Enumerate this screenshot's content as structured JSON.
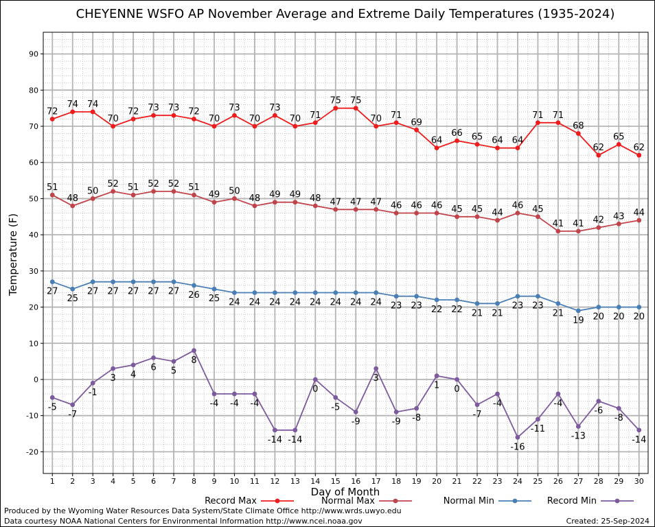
{
  "chart_data": {
    "type": "line",
    "title": "CHEYENNE WSFO AP November Average and Extreme Daily Temperatures (1935-2024)",
    "xlabel": "Day of Month",
    "ylabel": "Temperature (F)",
    "x": [
      1,
      2,
      3,
      4,
      5,
      6,
      7,
      8,
      9,
      10,
      11,
      12,
      13,
      14,
      15,
      16,
      17,
      18,
      19,
      20,
      21,
      22,
      23,
      24,
      25,
      26,
      27,
      28,
      29,
      30
    ],
    "xlim": [
      0.55,
      30.45
    ],
    "ylim": [
      -26,
      96
    ],
    "yticks": [
      -20,
      -10,
      0,
      10,
      20,
      30,
      40,
      50,
      60,
      70,
      80,
      90
    ],
    "grid": true,
    "legend_position": "bottom",
    "series": [
      {
        "name": "Record Max",
        "color": "#ee1c1c",
        "values": [
          72,
          74,
          74,
          70,
          72,
          73,
          73,
          72,
          70,
          73,
          70,
          73,
          70,
          71,
          75,
          75,
          70,
          71,
          69,
          64,
          66,
          65,
          64,
          64,
          71,
          71,
          68,
          62,
          65,
          62
        ],
        "label_pos": "above"
      },
      {
        "name": "Normal Max",
        "color": "#c0444a",
        "values": [
          51,
          48,
          50,
          52,
          51,
          52,
          52,
          51,
          49,
          50,
          48,
          49,
          49,
          48,
          47,
          47,
          47,
          46,
          46,
          46,
          45,
          45,
          44,
          46,
          45,
          41,
          41,
          42,
          43,
          44
        ],
        "label_pos": "above"
      },
      {
        "name": "Normal Min",
        "color": "#4a7fb5",
        "values": [
          27,
          25,
          27,
          27,
          27,
          27,
          27,
          26,
          25,
          24,
          24,
          24,
          24,
          24,
          24,
          24,
          24,
          23,
          23,
          22,
          22,
          21,
          21,
          23,
          23,
          21,
          19,
          20,
          20,
          20
        ],
        "label_pos": "below"
      },
      {
        "name": "Record Min",
        "color": "#7d5a9e",
        "values": [
          -5,
          -7,
          -1,
          3,
          4,
          6,
          5,
          8,
          -4,
          -4,
          -4,
          -14,
          -14,
          0,
          -5,
          -9,
          3,
          -9,
          -8,
          1,
          0,
          -7,
          -4,
          -16,
          -11,
          -4,
          -13,
          -6,
          -8,
          -14
        ],
        "label_pos": "below"
      }
    ]
  },
  "footer": {
    "produced_by": "Produced by the Wyoming Water Resources Data System/State Climate Office http://www.wrds.uwyo.edu",
    "data_courtesy": "Data courtesy NOAA National Centers for Environmental Information http://www.ncei.noaa.gov",
    "created": "Created: 25-Sep-2024"
  }
}
